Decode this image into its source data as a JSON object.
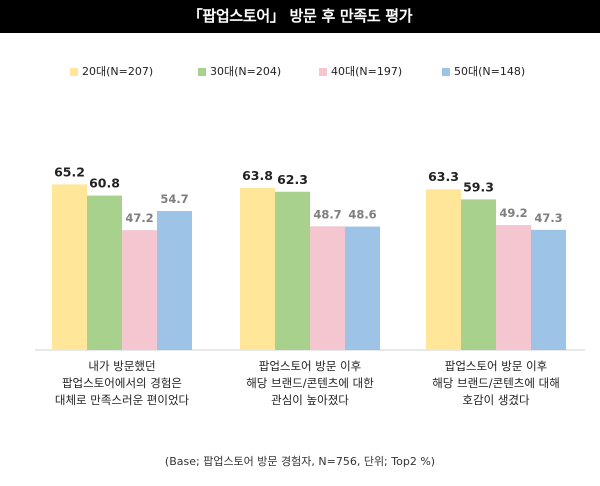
{
  "title": "「팝업스토어」 방문 후 만족도 평가",
  "legend": [
    {
      "label": "20대(N=207)",
      "color": "#FFE699"
    },
    {
      "label": "30대(N=204)",
      "color": "#A9D18E"
    },
    {
      "label": "40대(N=197)",
      "color": "#F4C7D0"
    },
    {
      "label": "50대(N=148)",
      "color": "#9DC3E6"
    }
  ],
  "chart_data": {
    "type": "bar",
    "title": "「팝업스토어」 방문 후 만족도 평가",
    "categories": [
      [
        "내가 방문했던",
        "팝업스토어에서의 경험은",
        "대체로 만족스러운 편이었다"
      ],
      [
        "팝업스토어 방문 이후",
        "해당 브랜드/콘텐츠에 대한",
        "관심이 높아졌다"
      ],
      [
        "팝업스토어 방문 이후",
        "해당 브랜드/콘텐츠에 대해",
        "호감이 생겼다"
      ]
    ],
    "series": [
      {
        "name": "20대(N=207)",
        "color": "#FFE699",
        "values": [
          65.2,
          63.8,
          63.3
        ]
      },
      {
        "name": "30대(N=204)",
        "color": "#A9D18E",
        "values": [
          60.8,
          62.3,
          59.3
        ]
      },
      {
        "name": "40대(N=197)",
        "color": "#F4C7D0",
        "values": [
          47.2,
          48.7,
          49.2
        ]
      },
      {
        "name": "50대(N=148)",
        "color": "#9DC3E6",
        "values": [
          54.7,
          48.6,
          47.3
        ]
      }
    ],
    "label_colors": {
      "highlight": "#222222",
      "muted": "#7f7f7f"
    },
    "highlight_series": [
      0,
      1
    ],
    "ylim": [
      0,
      100
    ],
    "grid": false
  },
  "note": "(Base; 팝업스토어 방문 경험자, N=756, 단위; Top2 %)"
}
